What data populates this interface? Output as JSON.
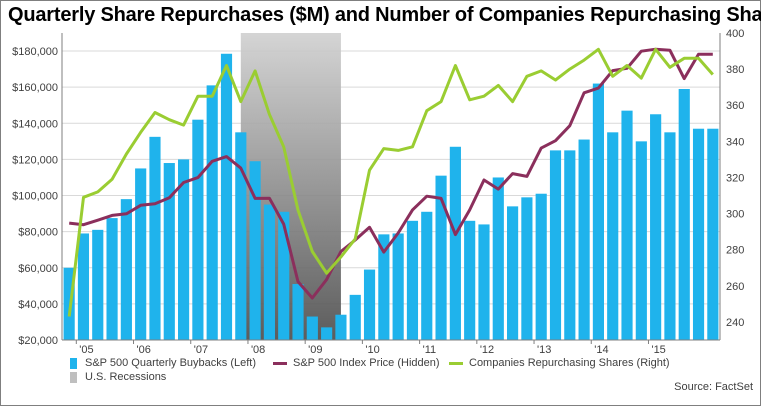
{
  "title": "Quarterly Share Repurchases ($M) and Number of Companies Repurchasing Shares",
  "source": "Source: FactSet",
  "colors": {
    "buybacks": "#1fb3ec",
    "index": "#8b2f5c",
    "companies": "#9acd32",
    "recession": "#a6a6a6",
    "grid": "#d9d9d9"
  },
  "legend": [
    {
      "label": "S&P 500 Quarterly Buybacks (Left)",
      "kind": "bar",
      "color": "#1fb3ec"
    },
    {
      "label": "S&P 500 Index Price (Hidden)",
      "kind": "line",
      "color": "#8b2f5c"
    },
    {
      "label": "Companies Repurchasing Shares (Right)",
      "kind": "line",
      "color": "#9acd32"
    },
    {
      "label": "U.S. Recessions",
      "kind": "bar",
      "color": "#bfbfbf"
    }
  ],
  "chart_data": {
    "type": "bar",
    "quarters": [
      "Q4 2004",
      "Q1 2005",
      "Q2 2005",
      "Q3 2005",
      "Q4 2005",
      "Q1 2006",
      "Q2 2006",
      "Q3 2006",
      "Q4 2006",
      "Q1 2007",
      "Q2 2007",
      "Q3 2007",
      "Q4 2007",
      "Q1 2008",
      "Q2 2008",
      "Q3 2008",
      "Q4 2008",
      "Q1 2009",
      "Q2 2009",
      "Q3 2009",
      "Q4 2009",
      "Q1 2010",
      "Q2 2010",
      "Q3 2010",
      "Q4 2010",
      "Q1 2011",
      "Q2 2011",
      "Q3 2011",
      "Q4 2011",
      "Q1 2012",
      "Q2 2012",
      "Q3 2012",
      "Q4 2012",
      "Q1 2013",
      "Q2 2013",
      "Q3 2013",
      "Q4 2013",
      "Q1 2014",
      "Q2 2014",
      "Q3 2014",
      "Q4 2014",
      "Q1 2015",
      "Q2 2015",
      "Q3 2015",
      "Q4 2015",
      "Q1 2016"
    ],
    "x_tick_labels": [
      "'05",
      "'06",
      "'07",
      "'08",
      "'09",
      "'10",
      "'11",
      "'12",
      "'13",
      "'14",
      "'15"
    ],
    "x_tick_quarter_index": [
      1,
      5,
      9,
      13,
      17,
      21,
      25,
      29,
      33,
      37,
      41
    ],
    "series": [
      {
        "name": "S&P 500 Quarterly Buybacks (Left)",
        "type": "bar",
        "axis": "left",
        "values": [
          60000,
          79000,
          81000,
          87500,
          98000,
          115000,
          132500,
          118000,
          120000,
          142000,
          161000,
          178500,
          135000,
          119000,
          95000,
          91000,
          51000,
          33000,
          27000,
          34000,
          45000,
          59000,
          78500,
          79000,
          86000,
          91000,
          111000,
          127000,
          86000,
          84000,
          110000,
          94000,
          99000,
          101000,
          125000,
          125000,
          131000,
          162000,
          135000,
          147000,
          130000,
          145000,
          135000,
          159000,
          137000,
          137000
        ]
      },
      {
        "name": "S&P 500 Index Price (Hidden)",
        "type": "line",
        "axis": "none",
        "values": [
          1190,
          1182,
          1205,
          1229,
          1237,
          1280,
          1288,
          1318,
          1395,
          1420,
          1502,
          1526,
          1468,
          1315,
          1316,
          1185,
          895,
          812,
          905,
          1047,
          1105,
          1169,
          1044,
          1140,
          1257,
          1326,
          1315,
          1132,
          1257,
          1408,
          1362,
          1440,
          1426,
          1569,
          1606,
          1682,
          1848,
          1872,
          1960,
          1972,
          2058,
          2068,
          2063,
          1920,
          2043,
          2043
        ]
      },
      {
        "name": "Companies Repurchasing Shares (Right)",
        "type": "line",
        "axis": "right",
        "values": [
          243,
          309,
          312,
          319,
          333,
          345,
          356,
          352,
          349,
          365,
          365,
          382,
          362,
          379,
          355,
          337,
          302,
          279,
          267,
          276,
          286,
          324,
          336,
          335,
          337,
          357,
          362,
          382,
          363,
          365,
          371,
          362,
          376,
          379,
          374,
          380,
          385,
          391,
          376,
          382,
          375,
          391,
          381,
          386,
          386,
          377
        ]
      }
    ],
    "recession_shading": {
      "start": "Q4 2007",
      "end": "Q2 2009"
    },
    "y_left": {
      "min": 20000,
      "max": 190000,
      "ticks": [
        "$20,000",
        "$40,000",
        "$60,000",
        "$80,000",
        "$100,000",
        "$120,000",
        "$140,000",
        "$160,000",
        "$180,000"
      ],
      "tick_values": [
        20000,
        40000,
        60000,
        80000,
        100000,
        120000,
        140000,
        160000,
        180000
      ]
    },
    "y_right": {
      "min": 230,
      "max": 400,
      "ticks": [
        "240",
        "260",
        "280",
        "300",
        "320",
        "340",
        "360",
        "380",
        "400"
      ],
      "tick_values": [
        240,
        260,
        280,
        300,
        320,
        340,
        360,
        380,
        400
      ]
    },
    "index_scale": {
      "min": 600,
      "max": 2150
    }
  }
}
